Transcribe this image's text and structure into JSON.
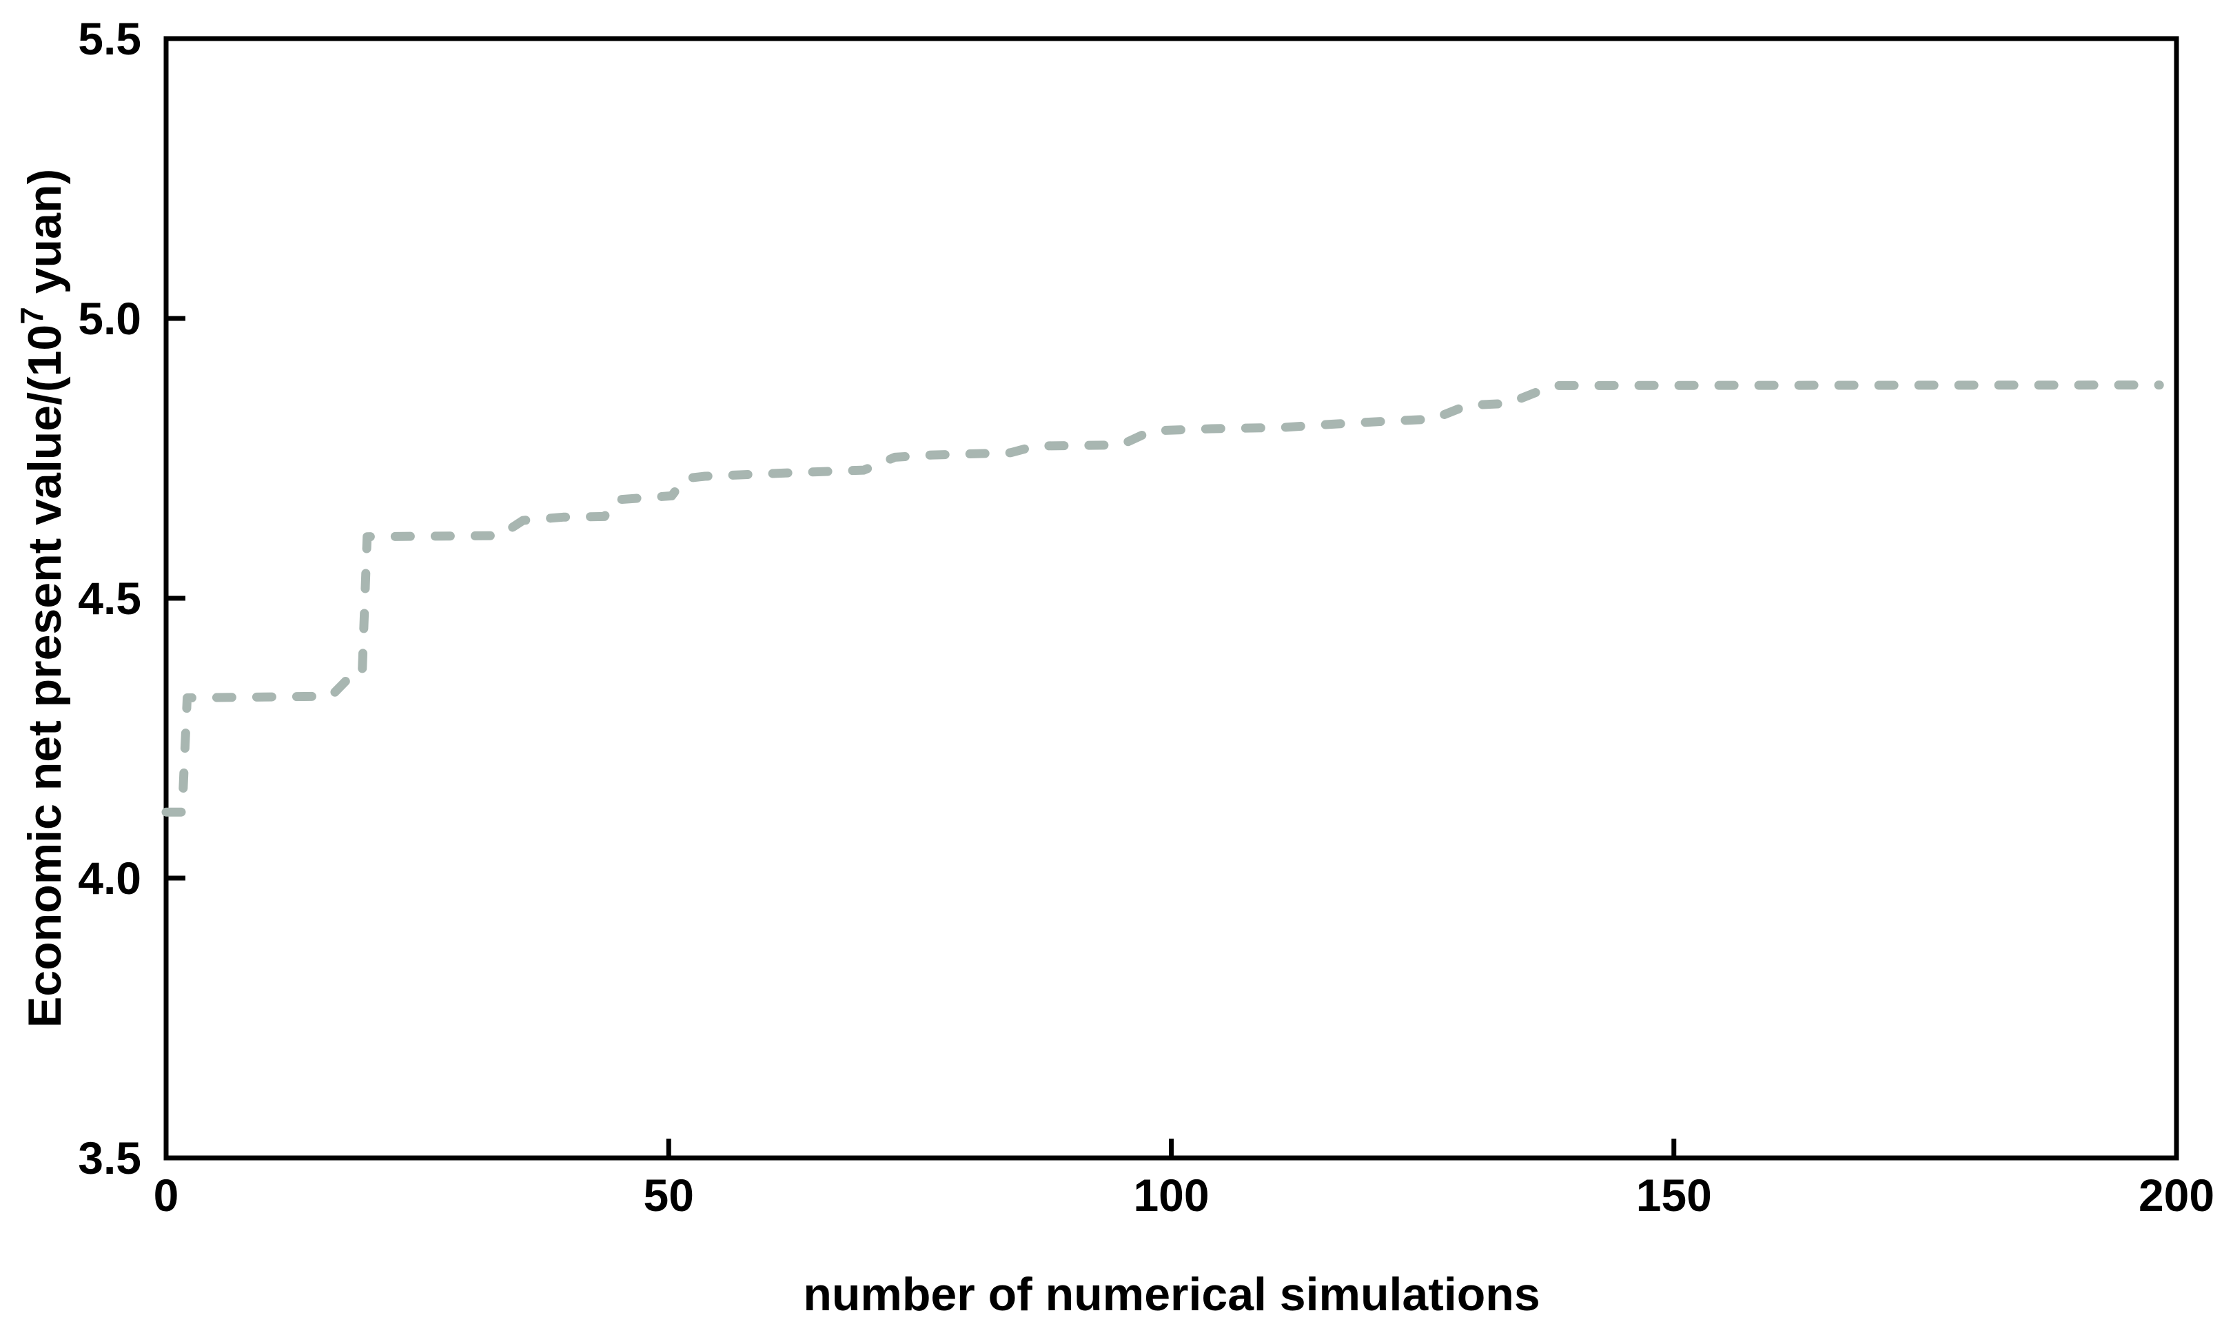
{
  "figure": {
    "background": "#ffffff",
    "frame_color": "#000000"
  },
  "chart_data": {
    "type": "line",
    "title": "",
    "xlabel": "number of numerical simulations",
    "ylabel": "Economic net present value/(10^7 yuan)",
    "ylabel_parts": {
      "prefix": "Economic net present value/(10",
      "superscript": "7",
      "suffix": " yuan)"
    },
    "xlim": [
      0,
      200
    ],
    "ylim": [
      3.5,
      5.5
    ],
    "xticks": {
      "values": [
        0,
        50,
        100,
        150,
        200
      ],
      "labels": [
        "0",
        "50",
        "100",
        "150",
        "200"
      ]
    },
    "yticks": {
      "values": [
        3.5,
        4.0,
        4.5,
        5.0,
        5.5
      ],
      "labels": [
        "3.5",
        "4.0",
        "4.5",
        "5.0",
        "5.5"
      ]
    },
    "grid": false,
    "legend": "none",
    "line_style": {
      "color": "#a8b6b1",
      "dash": "dashed",
      "width": 13
    },
    "series": [
      {
        "points": [
          [
            0,
            4.118
          ],
          [
            1.6,
            4.118
          ],
          [
            2.1,
            4.322
          ],
          [
            16.4,
            4.325
          ],
          [
            18.2,
            4.358
          ],
          [
            19.5,
            4.363
          ],
          [
            20.0,
            4.61
          ],
          [
            33.2,
            4.612
          ],
          [
            35.5,
            4.639
          ],
          [
            39.5,
            4.645
          ],
          [
            43.6,
            4.646
          ],
          [
            44.8,
            4.676
          ],
          [
            50.3,
            4.683
          ],
          [
            51.6,
            4.714
          ],
          [
            53.6,
            4.718
          ],
          [
            61.8,
            4.724
          ],
          [
            69.4,
            4.729
          ],
          [
            72.5,
            4.752
          ],
          [
            76.2,
            4.756
          ],
          [
            84.0,
            4.76
          ],
          [
            86.5,
            4.772
          ],
          [
            95.0,
            4.774
          ],
          [
            98.0,
            4.799
          ],
          [
            104.0,
            4.803
          ],
          [
            111.0,
            4.805
          ],
          [
            115.0,
            4.81
          ],
          [
            122.0,
            4.817
          ],
          [
            126.0,
            4.82
          ],
          [
            129.5,
            4.845
          ],
          [
            133.5,
            4.848
          ],
          [
            138.0,
            4.88
          ],
          [
            198.3,
            4.881
          ]
        ]
      }
    ]
  }
}
